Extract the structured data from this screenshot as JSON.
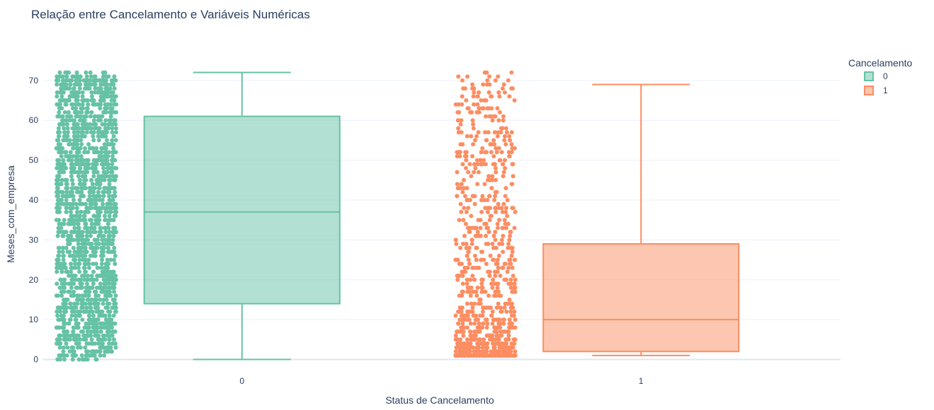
{
  "chart_data": {
    "type": "box",
    "title": "Relação entre Cancelamento e Variáveis Numéricas",
    "xlabel": "Status de Cancelamento",
    "ylabel": "Meses_com_empresa",
    "categories": [
      "0",
      "1"
    ],
    "ylim": [
      -1.5,
      76
    ],
    "yticks": [
      0,
      10,
      20,
      30,
      40,
      50,
      60,
      70
    ],
    "grid": true,
    "points": "all (jittered)",
    "legend": {
      "title": "Cancelamento",
      "placement": "top-right",
      "entries": [
        "0",
        "1"
      ]
    },
    "series": [
      {
        "name": "0",
        "category": "0",
        "color": "#66c2a5",
        "fill": "rgba(102,194,165,0.5)",
        "min": 0,
        "q1": 14,
        "median": 37,
        "q3": 61,
        "max": 72
      },
      {
        "name": "1",
        "category": "1",
        "color": "#fc8d62",
        "fill": "rgba(252,141,98,0.5)",
        "min": 1,
        "q1": 2,
        "median": 10,
        "q3": 29,
        "max": 69
      }
    ]
  }
}
